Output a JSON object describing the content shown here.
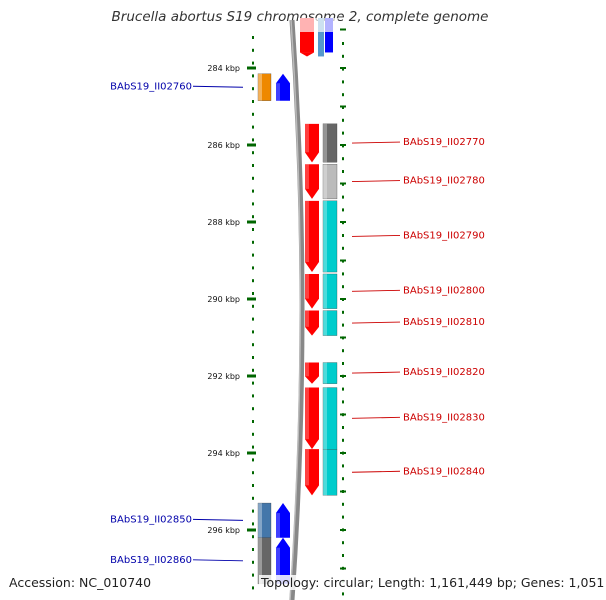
{
  "title": "Brucella abortus S19 chromosome 2, complete genome",
  "footer": {
    "accession": "Accession: NC_010740",
    "summary": "Topology: circular; Length: 1,161,449 bp; Genes: 1,051"
  },
  "colors": {
    "forward_label": "#0000aa",
    "reverse_label": "#cc0000",
    "forward_gene": "#0000ff",
    "reverse_gene": "#ff0000",
    "backbone": "#888888",
    "tick": "#006600"
  },
  "scale": {
    "unit": "kbp",
    "ticks": [
      {
        "kbp": 284,
        "label": "284 kbp"
      },
      {
        "kbp": 286,
        "label": "286 kbp"
      },
      {
        "kbp": 288,
        "label": "288 kbp"
      },
      {
        "kbp": 290,
        "label": "290 kbp"
      },
      {
        "kbp": 292,
        "label": "292 kbp"
      },
      {
        "kbp": 294,
        "label": "294 kbp"
      },
      {
        "kbp": 296,
        "label": "296 kbp"
      }
    ]
  },
  "genes": [
    {
      "label": "BAbS19_II02760",
      "strand": "forward",
      "start_kbp": 284.15,
      "end_kbp": 284.85,
      "cog_color": "#ee8800"
    },
    {
      "label": "BAbS19_II02770",
      "strand": "reverse",
      "start_kbp": 285.45,
      "end_kbp": 286.45,
      "cog_color": "#666666"
    },
    {
      "label": "BAbS19_II02780",
      "strand": "reverse",
      "start_kbp": 286.5,
      "end_kbp": 287.4,
      "cog_color": "#bbbbbb"
    },
    {
      "label": "BAbS19_II02790",
      "strand": "reverse",
      "start_kbp": 287.45,
      "end_kbp": 289.3,
      "cog_color": "#00cccc"
    },
    {
      "label": "BAbS19_II02800",
      "strand": "reverse",
      "start_kbp": 289.35,
      "end_kbp": 290.25,
      "cog_color": "#00cccc"
    },
    {
      "label": "BAbS19_II02810",
      "strand": "reverse",
      "start_kbp": 290.3,
      "end_kbp": 290.95,
      "cog_color": "#00cccc"
    },
    {
      "label": "BAbS19_II02820",
      "strand": "reverse",
      "start_kbp": 291.65,
      "end_kbp": 292.2,
      "cog_color": "#00cccc"
    },
    {
      "label": "BAbS19_II02830",
      "strand": "reverse",
      "start_kbp": 292.3,
      "end_kbp": 293.9,
      "cog_color": "#00cccc"
    },
    {
      "label": "BAbS19_II02840",
      "strand": "reverse",
      "start_kbp": 293.9,
      "end_kbp": 295.1,
      "cog_color": "#00cccc"
    },
    {
      "label": "BAbS19_II02850",
      "strand": "forward",
      "start_kbp": 295.3,
      "end_kbp": 296.2,
      "cog_color": "#4477aa"
    },
    {
      "label": "BAbS19_II02860",
      "strand": "forward",
      "start_kbp": 296.2,
      "end_kbp": 297.4,
      "cog_color": "#666666"
    }
  ],
  "partial_genes": [
    {
      "strand": "reverse",
      "start_kbp": 282.7,
      "end_kbp": 283.7,
      "cog_color": "#5599cc"
    }
  ]
}
